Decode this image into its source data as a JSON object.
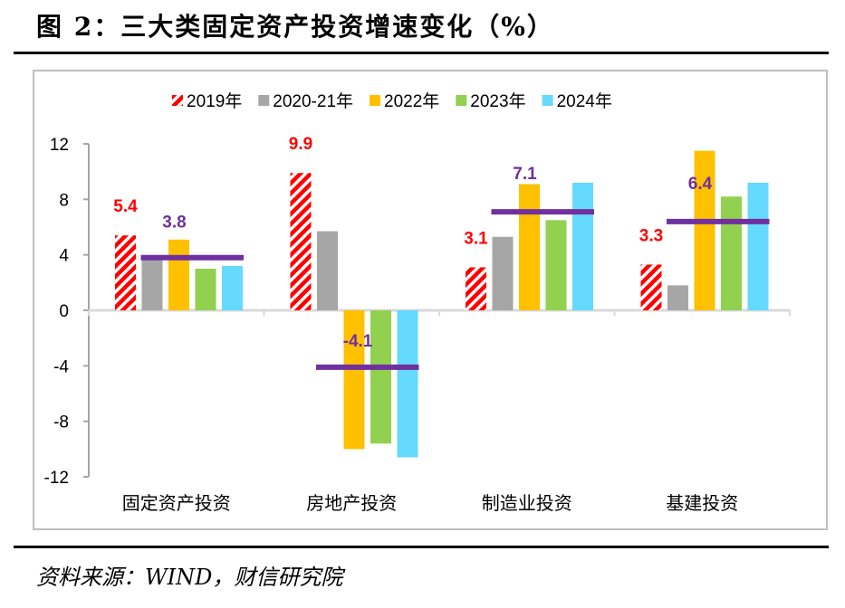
{
  "title": "图 2：三大类固定资产投资增速变化（%）",
  "source": "资料来源：WIND，财信研究院",
  "chart_data": {
    "type": "bar",
    "categories": [
      "固定资产投资",
      "房地产投资",
      "制造业投资",
      "基建投资"
    ],
    "series": [
      {
        "name": "2019年",
        "color": "#FF0000",
        "pattern": "diagonal-stripes",
        "values": [
          5.4,
          9.9,
          3.1,
          3.3
        ]
      },
      {
        "name": "2020-21年",
        "color": "#A6A6A6",
        "values": [
          3.8,
          5.7,
          5.3,
          1.8
        ]
      },
      {
        "name": "2022年",
        "color": "#FFC000",
        "values": [
          5.1,
          -10.0,
          9.1,
          11.5
        ]
      },
      {
        "name": "2023年",
        "color": "#92D050",
        "values": [
          3.0,
          -9.6,
          6.5,
          8.2
        ]
      },
      {
        "name": "2024年",
        "color": "#66D9FF",
        "values": [
          3.2,
          -10.6,
          9.2,
          9.2
        ]
      }
    ],
    "average_line": {
      "color": "#7030A0",
      "values": [
        3.8,
        -4.1,
        7.1,
        6.4
      ]
    },
    "data_labels": {
      "2019": [
        "5.4",
        "9.9",
        "3.1",
        "3.3"
      ],
      "average": [
        "3.8",
        "-4.1",
        "7.1",
        "6.4"
      ]
    },
    "yticks": [
      "12",
      "8",
      "4",
      "0",
      "-4",
      "-8",
      "-12"
    ],
    "ylim": [
      -12,
      12
    ],
    "grid": false,
    "legend": "top"
  }
}
